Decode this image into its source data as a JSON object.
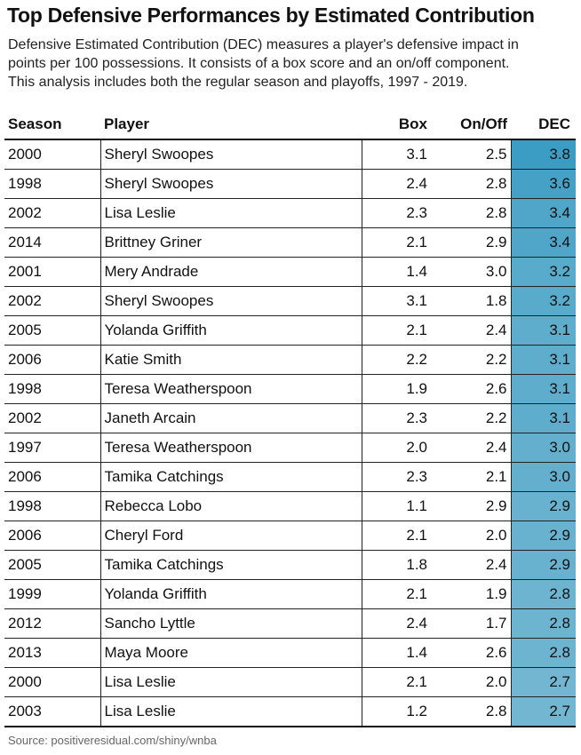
{
  "title": "Top Defensive Performances by Estimated Contribution",
  "subtitle_lines": [
    "Defensive Estimated Contribution (DEC) measures a player's defensive impact in",
    "points per 100 possessions. It consists of a box score and an on/off component.",
    "This analysis includes both the regular season and playoffs, 1997 - 2019."
  ],
  "source": "Source: positiveresidual.com/shiny/wnba",
  "colors": {
    "dec_high": "#3b9dc4",
    "dec_low": "#72b6d1"
  },
  "chart_data": {
    "type": "table",
    "columns": [
      "Season",
      "Player",
      "Box",
      "On/Off",
      "DEC"
    ],
    "rows": [
      [
        "2000",
        "Sheryl Swoopes",
        "3.1",
        "2.5",
        "3.8"
      ],
      [
        "1998",
        "Sheryl Swoopes",
        "2.4",
        "2.8",
        "3.6"
      ],
      [
        "2002",
        "Lisa Leslie",
        "2.3",
        "2.8",
        "3.4"
      ],
      [
        "2014",
        "Brittney Griner",
        "2.1",
        "2.9",
        "3.4"
      ],
      [
        "2001",
        "Mery Andrade",
        "1.4",
        "3.0",
        "3.2"
      ],
      [
        "2002",
        "Sheryl Swoopes",
        "3.1",
        "1.8",
        "3.2"
      ],
      [
        "2005",
        "Yolanda Griffith",
        "2.1",
        "2.4",
        "3.1"
      ],
      [
        "2006",
        "Katie Smith",
        "2.2",
        "2.2",
        "3.1"
      ],
      [
        "1998",
        "Teresa Weatherspoon",
        "1.9",
        "2.6",
        "3.1"
      ],
      [
        "2002",
        "Janeth Arcain",
        "2.3",
        "2.2",
        "3.1"
      ],
      [
        "1997",
        "Teresa Weatherspoon",
        "2.0",
        "2.4",
        "3.0"
      ],
      [
        "2006",
        "Tamika Catchings",
        "2.3",
        "2.1",
        "3.0"
      ],
      [
        "1998",
        "Rebecca Lobo",
        "1.1",
        "2.9",
        "2.9"
      ],
      [
        "2006",
        "Cheryl Ford",
        "2.1",
        "2.0",
        "2.9"
      ],
      [
        "2005",
        "Tamika Catchings",
        "1.8",
        "2.4",
        "2.9"
      ],
      [
        "1999",
        "Yolanda Griffith",
        "2.1",
        "1.9",
        "2.8"
      ],
      [
        "2012",
        "Sancho Lyttle",
        "2.4",
        "1.7",
        "2.8"
      ],
      [
        "2013",
        "Maya Moore",
        "1.4",
        "2.6",
        "2.8"
      ],
      [
        "2000",
        "Lisa Leslie",
        "2.1",
        "2.0",
        "2.7"
      ],
      [
        "2003",
        "Lisa Leslie",
        "1.2",
        "2.8",
        "2.7"
      ]
    ]
  }
}
